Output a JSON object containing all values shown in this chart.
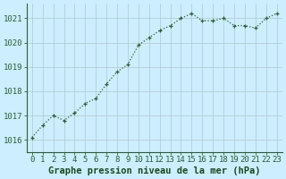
{
  "x": [
    0,
    1,
    2,
    3,
    4,
    5,
    6,
    7,
    8,
    9,
    10,
    11,
    12,
    13,
    14,
    15,
    16,
    17,
    18,
    19,
    20,
    21,
    22,
    23
  ],
  "y": [
    1016.1,
    1016.6,
    1017.0,
    1016.8,
    1017.1,
    1017.5,
    1017.7,
    1018.3,
    1018.8,
    1019.1,
    1019.9,
    1020.2,
    1020.5,
    1020.7,
    1021.0,
    1021.2,
    1020.9,
    1020.9,
    1021.0,
    1020.7,
    1020.7,
    1020.6,
    1021.0,
    1021.2
  ],
  "line_color": "#2d5e2d",
  "marker": "+",
  "bg_color": "#cceeff",
  "plot_bg_color": "#cceeff",
  "grid_color": "#b0c8c8",
  "xlabel": "Graphe pression niveau de la mer (hPa)",
  "xlabel_color": "#1a4a1a",
  "xlabel_fontsize": 7.5,
  "ylabel_ticks": [
    1016,
    1017,
    1018,
    1019,
    1020,
    1021
  ],
  "xlim": [
    -0.5,
    23.5
  ],
  "ylim": [
    1015.5,
    1021.6
  ],
  "tick_color": "#2d5e2d",
  "tick_fontsize": 6.5,
  "spine_color": "#2d5e2d",
  "linewidth": 0.9,
  "markersize": 3.5,
  "markeredgewidth": 0.9
}
